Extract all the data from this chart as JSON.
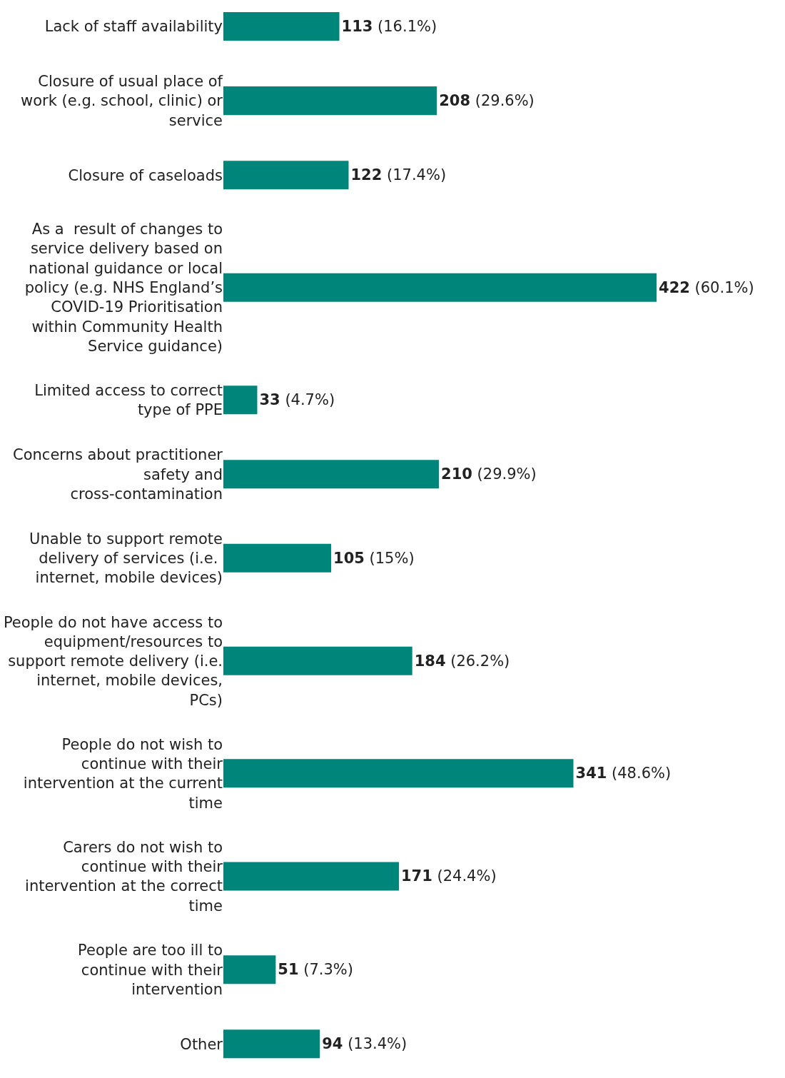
{
  "chart_data": {
    "type": "bar",
    "orientation": "horizontal",
    "color": "#00857a",
    "categories": [
      "Lack of staff availability",
      "Closure of usual place of work (e.g. school, clinic) or service",
      "Closure of caseloads",
      "As a  result of changes to service delivery based on national guidance or local policy (e.g. NHS England’s COVID-19 Prioritisation within Community Health Service guidance)",
      "Limited access to correct type of PPE",
      "Concerns about practitioner safety and cross-contamination",
      "Unable to support remote delivery of services (i.e.  internet, mobile devices)",
      "People do not have access to equipment/resources to support remote delivery (i.e. internet, mobile devices, PCs)",
      "People do not wish to continue with their intervention at the current time",
      "Carers do not wish to continue with their intervention at the correct time",
      "People are too ill to continue with their intervention",
      "Other"
    ],
    "values": [
      113,
      208,
      122,
      422,
      33,
      210,
      105,
      184,
      341,
      171,
      51,
      94
    ],
    "value_labels": [
      "113 (16.1%)",
      "208 (29.6%)",
      "122 (17.4%)",
      "422 (60.1%)",
      "33 (4.7%)",
      "210 (29.9%)",
      "105 (15%)",
      "184 (26.2%)",
      "341 (48.6%)",
      "171 (24.4%)",
      "51 (7.3%)",
      "94 (13.4%)"
    ],
    "grid": false
  }
}
